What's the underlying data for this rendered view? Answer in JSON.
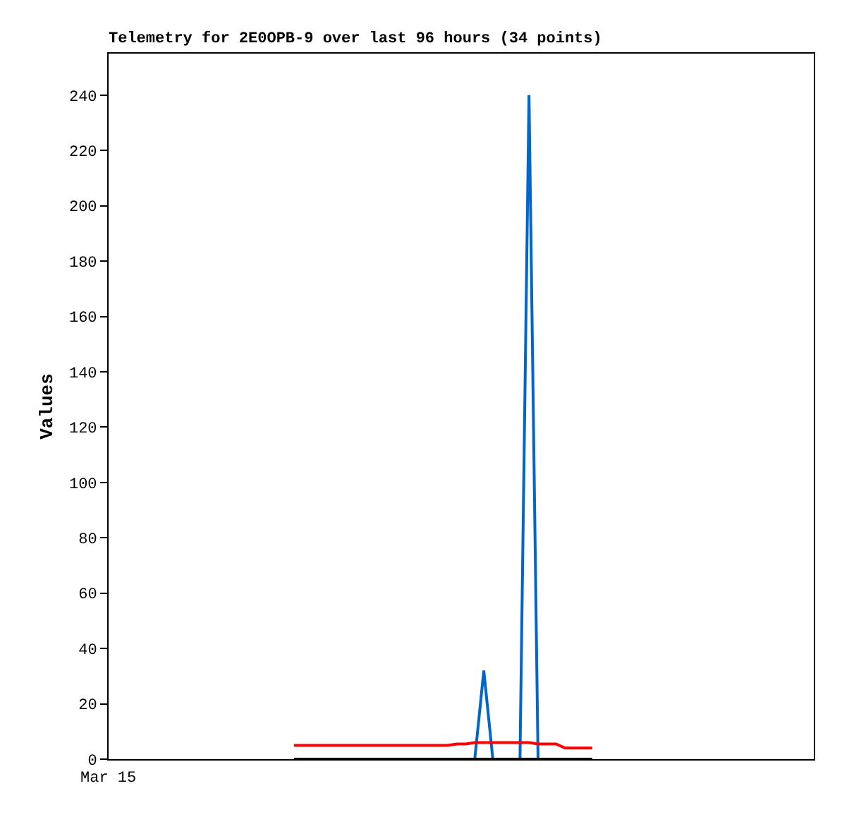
{
  "chart_data": {
    "type": "line",
    "title": "Telemetry for 2E0OPB-9 over last 96 hours (34 points)",
    "ylabel": "Values",
    "annotations": [
      "Mar 15"
    ],
    "categories": [
      null,
      null,
      null,
      null,
      null,
      null,
      null,
      null,
      null,
      null,
      null,
      null,
      null,
      null,
      null,
      null,
      null,
      null,
      null,
      null,
      null,
      null,
      null,
      null,
      null,
      null,
      null,
      null,
      null,
      null,
      null,
      null,
      null,
      null,
      null,
      null,
      null,
      null,
      null,
      null,
      null,
      null,
      null,
      null,
      null,
      null,
      null,
      null,
      null,
      null,
      null,
      null,
      null,
      null,
      null,
      null,
      null,
      null,
      null,
      null,
      null,
      null,
      null,
      null,
      null,
      null,
      null,
      null,
      null,
      null,
      null,
      null,
      null,
      null,
      null,
      null,
      null,
      null
    ],
    "ylim": [
      0,
      255
    ],
    "yticks": [
      0,
      20,
      40,
      60,
      80,
      100,
      120,
      140,
      160,
      180,
      200,
      220,
      240
    ],
    "series": [
      {
        "color": "#000000",
        "values": [
          null,
          null,
          null,
          null,
          null,
          null,
          null,
          null,
          null,
          null,
          null,
          null,
          null,
          null,
          null,
          null,
          null,
          null,
          null,
          null,
          0,
          0,
          0,
          0,
          0,
          0,
          0,
          0,
          0,
          0,
          0,
          0,
          0,
          0,
          0,
          0,
          0,
          0,
          0,
          0,
          0,
          0,
          0,
          0,
          0,
          0,
          0,
          0,
          0,
          0,
          0,
          0,
          0,
          0,
          null,
          null,
          null,
          null,
          null,
          null,
          null,
          null,
          null,
          null,
          null,
          null,
          null,
          null,
          null,
          null,
          null,
          null,
          null,
          null,
          null,
          null,
          null,
          null
        ]
      },
      {
        "color": "#ff0000",
        "values": [
          null,
          null,
          null,
          null,
          null,
          null,
          null,
          null,
          null,
          null,
          null,
          null,
          null,
          null,
          null,
          null,
          null,
          null,
          null,
          null,
          5,
          5,
          5,
          5,
          5,
          5,
          5,
          5,
          5,
          5,
          5,
          5,
          5,
          5,
          5,
          5,
          5,
          5,
          5.5,
          5.5,
          6,
          6,
          6,
          6,
          6,
          6,
          6,
          5.5,
          5.5,
          5.5,
          4,
          4,
          4,
          4,
          null,
          null,
          null,
          null,
          null,
          null,
          null,
          null,
          null,
          null,
          null,
          null,
          null,
          null,
          null,
          null,
          null,
          null,
          null,
          null,
          null,
          null,
          null,
          null
        ]
      },
      {
        "color": "#0066cc",
        "values": [
          null,
          null,
          null,
          null,
          null,
          null,
          null,
          null,
          null,
          null,
          null,
          null,
          null,
          null,
          null,
          null,
          null,
          null,
          null,
          null,
          null,
          null,
          null,
          null,
          null,
          null,
          null,
          null,
          null,
          null,
          null,
          null,
          null,
          null,
          null,
          null,
          null,
          null,
          null,
          null,
          0,
          32,
          0,
          null,
          null,
          0,
          240,
          0,
          null,
          null,
          null,
          null,
          null,
          null,
          null,
          null,
          null,
          null,
          null,
          null,
          null,
          null,
          null,
          null,
          null,
          null,
          null,
          null,
          null,
          null,
          null,
          null,
          null,
          null,
          null,
          null,
          null,
          null
        ]
      }
    ]
  }
}
